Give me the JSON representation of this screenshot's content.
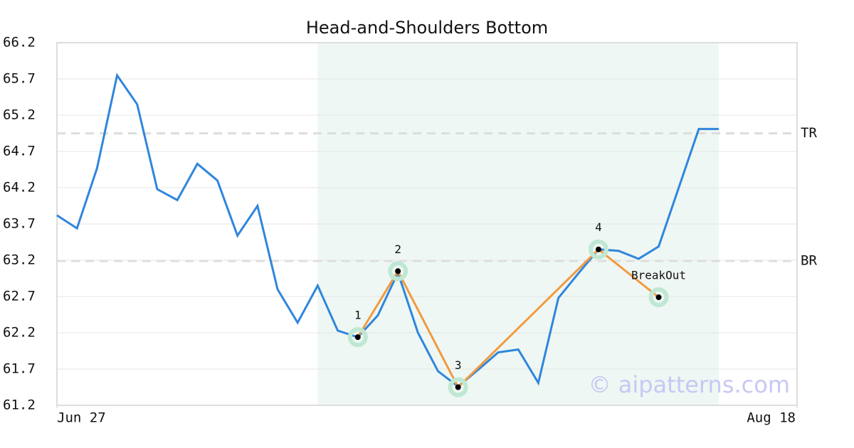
{
  "chart_data": {
    "type": "line",
    "title": "Head-and-Shoulders Bottom",
    "x": [
      0,
      1,
      2,
      3,
      4,
      5,
      6,
      7,
      8,
      9,
      10,
      11,
      12,
      13,
      14,
      15,
      16,
      17,
      18,
      19,
      20,
      21,
      22,
      23,
      24,
      25,
      26,
      27,
      28,
      29,
      30,
      31,
      32,
      33
    ],
    "series": [
      {
        "color": "#2f86dd",
        "values": [
          63.82,
          63.64,
          64.47,
          65.75,
          65.35,
          64.18,
          64.03,
          64.53,
          64.3,
          63.54,
          63.95,
          62.8,
          62.34,
          62.85,
          62.23,
          62.14,
          62.44,
          63.03,
          62.2,
          61.67,
          61.46,
          61.69,
          61.93,
          61.97,
          61.51,
          62.68,
          63.02,
          63.35,
          63.33,
          63.22,
          63.39,
          64.2,
          65.01,
          65.01
        ]
      }
    ],
    "xlim": [
      0,
      36.9
    ],
    "xticks": [
      {
        "value": 0,
        "label": "Jun 27"
      },
      {
        "value": 36.9,
        "label": "Aug 18"
      }
    ],
    "ylim": [
      61.2,
      66.2
    ],
    "yticks": [
      61.2,
      61.7,
      62.2,
      62.7,
      63.2,
      63.7,
      64.2,
      64.7,
      65.2,
      65.7,
      66.2
    ],
    "grid": true,
    "shaded_range": {
      "x": [
        13,
        33
      ],
      "color": "#eef7f3"
    },
    "pattern": {
      "color": "#f39a3f",
      "marker_color": "#bfe8d4",
      "points": [
        {
          "label": "1",
          "x": 15,
          "y": 62.14
        },
        {
          "label": "2",
          "x": 17,
          "y": 63.05
        },
        {
          "label": "3",
          "x": 20,
          "y": 61.45
        },
        {
          "label": "4",
          "x": 27,
          "y": 63.35
        },
        {
          "label": "BreakOut",
          "x": 30,
          "y": 62.69
        }
      ]
    },
    "reference_lines": [
      {
        "label": "TR",
        "y": 64.95
      },
      {
        "label": "BR",
        "y": 63.19
      }
    ],
    "watermark": "© aipatterns.com"
  }
}
